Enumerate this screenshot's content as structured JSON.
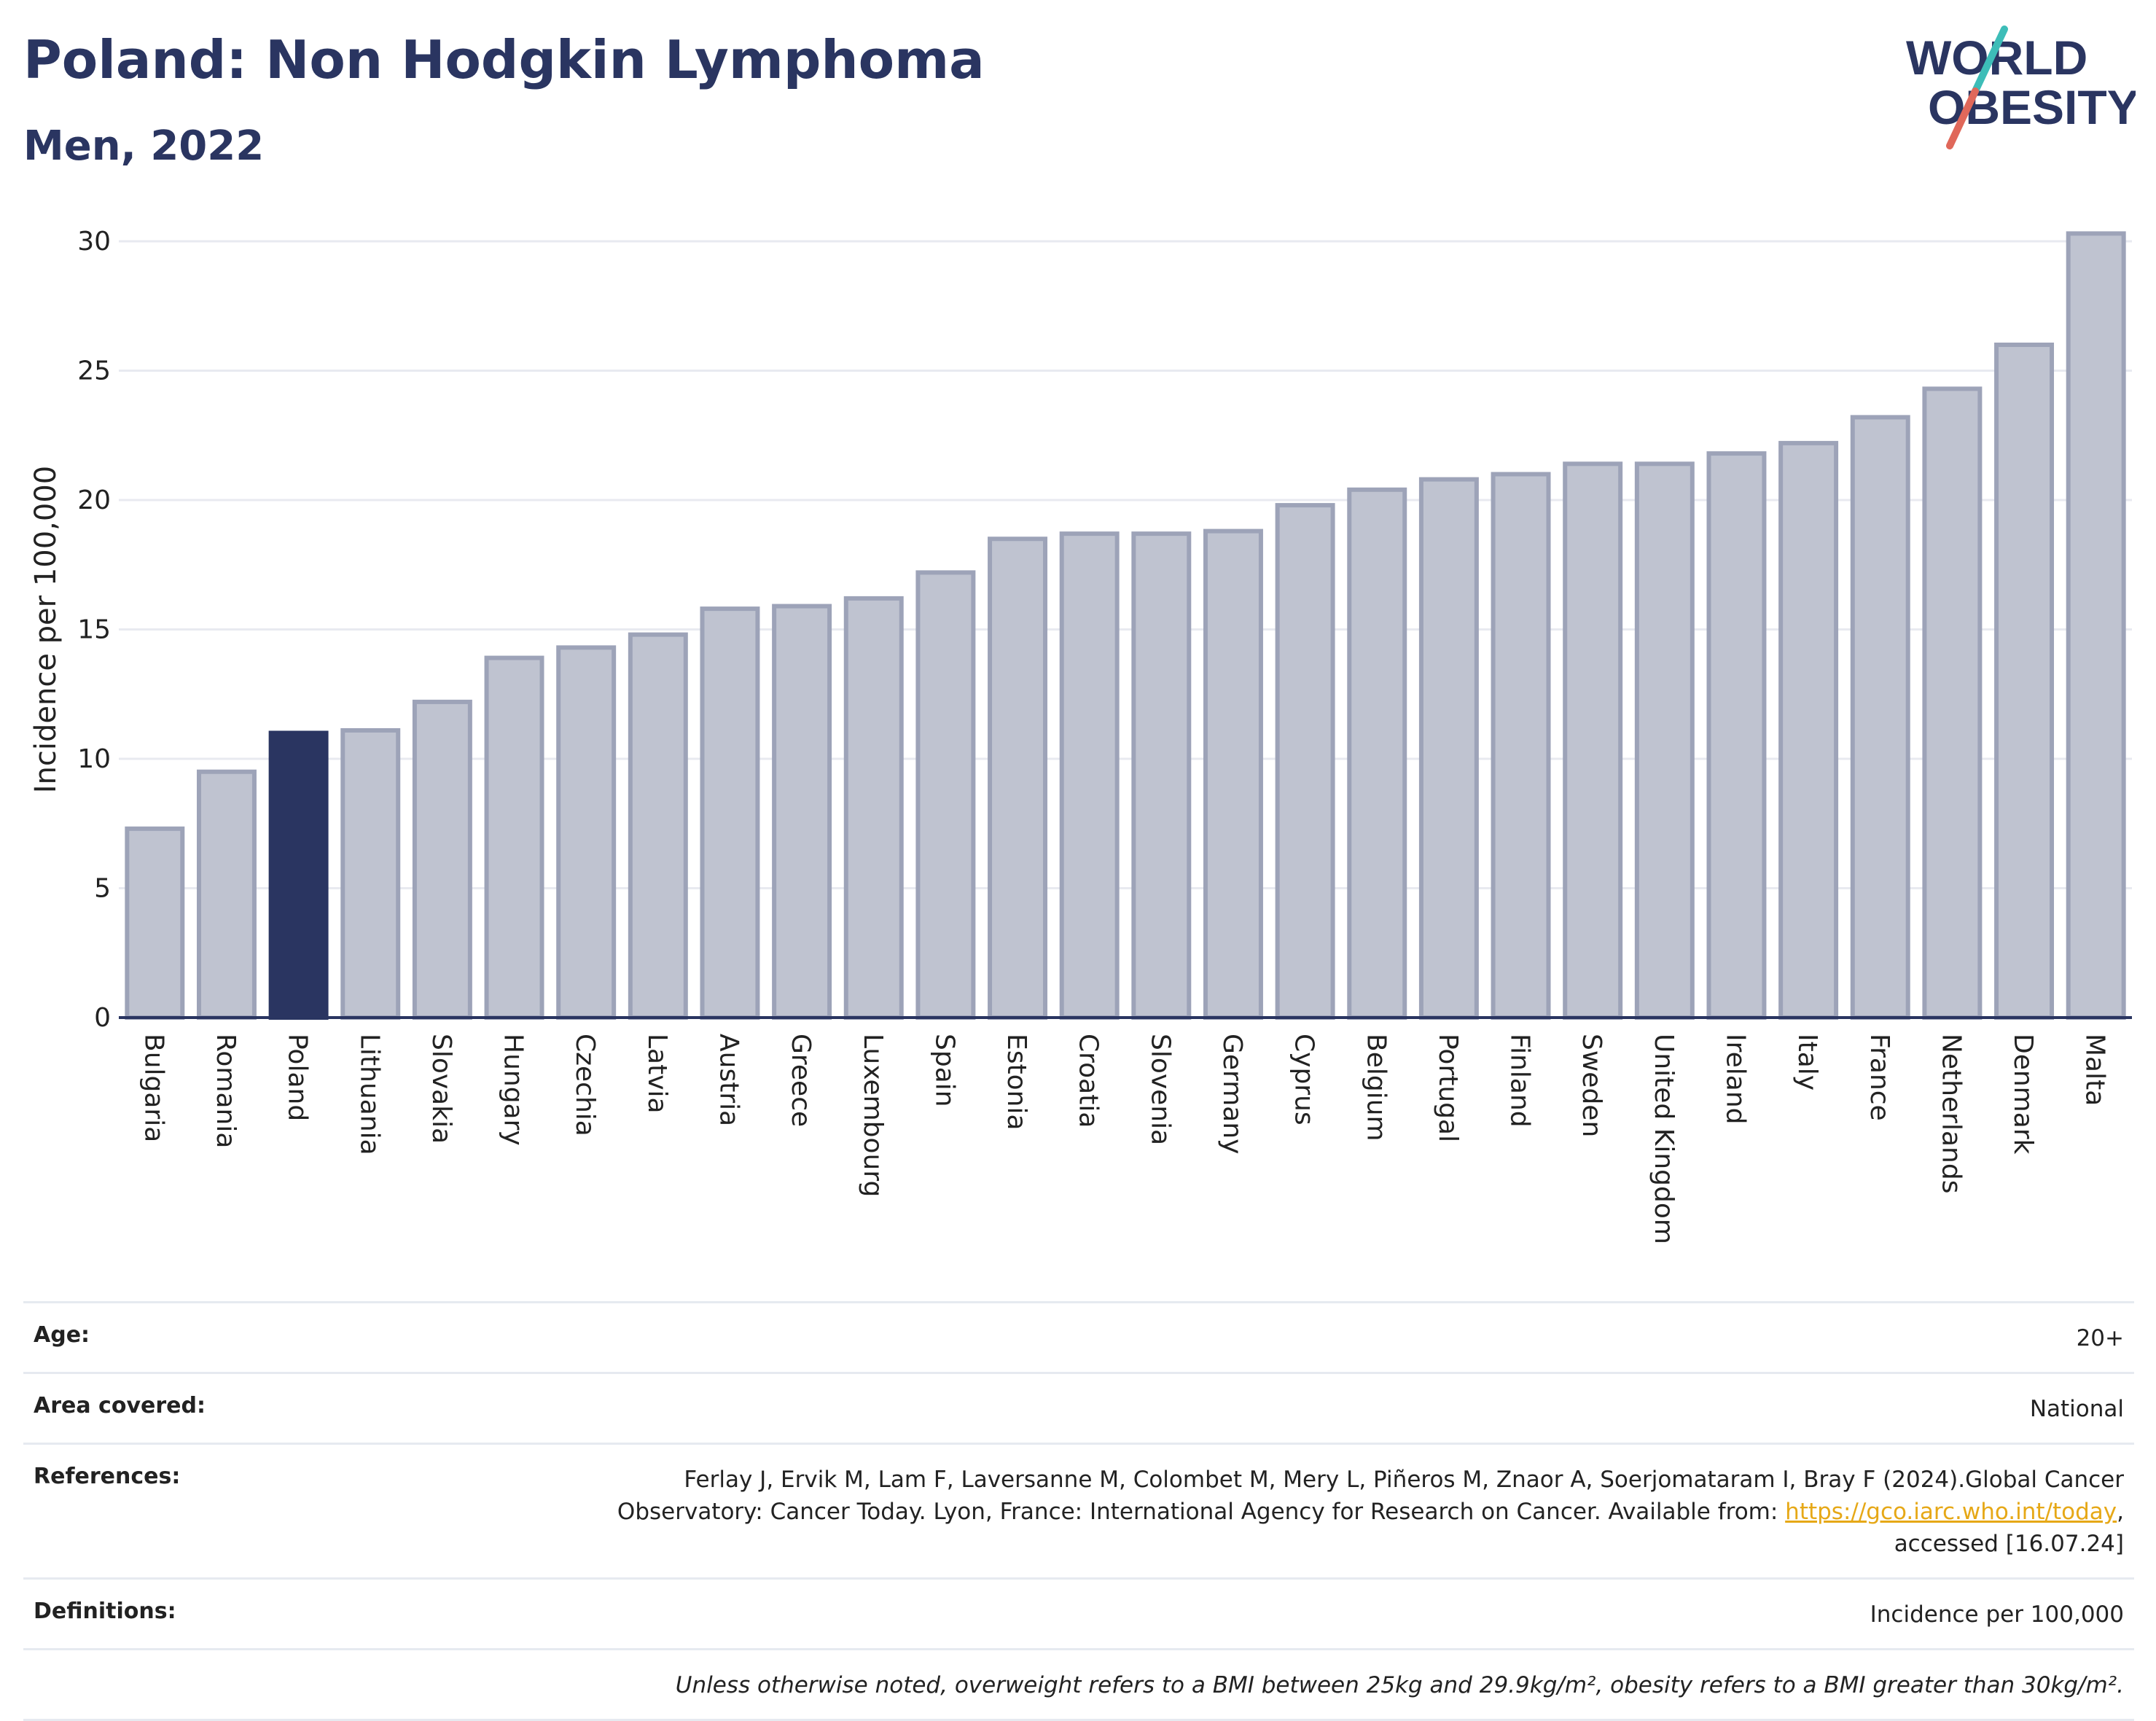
{
  "header": {
    "title": "Poland: Non Hodgkin Lymphoma",
    "subtitle": "Men, 2022"
  },
  "logo": {
    "line1": "WORLD",
    "line2": "OBESITY",
    "colors": {
      "text": "#2a3561",
      "slash_top": "#3dbdb8",
      "slash_bottom": "#e0685a"
    }
  },
  "chart_data": {
    "type": "bar",
    "ylabel": "Incidence per 100,000",
    "ylim": [
      0,
      31
    ],
    "yticks": [
      0,
      5,
      10,
      15,
      20,
      25,
      30
    ],
    "grid": true,
    "highlight": "Poland",
    "colors": {
      "bar": "#bfc3d0",
      "bar_edge": "#9da3b8",
      "highlight": "#2a3561"
    },
    "categories": [
      "Bulgaria",
      "Romania",
      "Poland",
      "Lithuania",
      "Slovakia",
      "Hungary",
      "Czechia",
      "Latvia",
      "Austria",
      "Greece",
      "Luxembourg",
      "Spain",
      "Estonia",
      "Croatia",
      "Slovenia",
      "Germany",
      "Cyprus",
      "Belgium",
      "Portugal",
      "Finland",
      "Sweden",
      "United Kingdom",
      "Ireland",
      "Italy",
      "France",
      "Netherlands",
      "Denmark",
      "Malta"
    ],
    "values": [
      7.3,
      9.5,
      11.0,
      11.1,
      12.2,
      13.9,
      14.3,
      14.8,
      15.8,
      15.9,
      16.2,
      17.2,
      18.5,
      18.7,
      18.7,
      18.8,
      19.8,
      20.4,
      20.8,
      21.0,
      21.4,
      21.4,
      21.8,
      22.2,
      23.2,
      24.3,
      26.0,
      30.3
    ]
  },
  "meta": {
    "age_label": "Age:",
    "age_value": "20+",
    "area_label": "Area covered:",
    "area_value": "National",
    "references_label": "References:",
    "references_line1": "Ferlay J, Ervik M, Lam F, Laversanne M, Colombet M, Mery L, Piñeros M, Znaor A, Soerjomataram I, Bray F (2024).Global Cancer",
    "references_line2_pre": "Observatory: Cancer Today. Lyon, France: International Agency for Research on Cancer. Available from: ",
    "references_link": "https://gco.iarc.who.int/today",
    "references_line2_post": ",",
    "references_line3": "accessed [16.07.24]",
    "definitions_label": "Definitions:",
    "definitions_value": "Incidence per 100,000",
    "note": "Unless otherwise noted, overweight refers to a BMI between 25kg and 29.9kg/m², obesity refers to a BMI greater than 30kg/m²."
  }
}
